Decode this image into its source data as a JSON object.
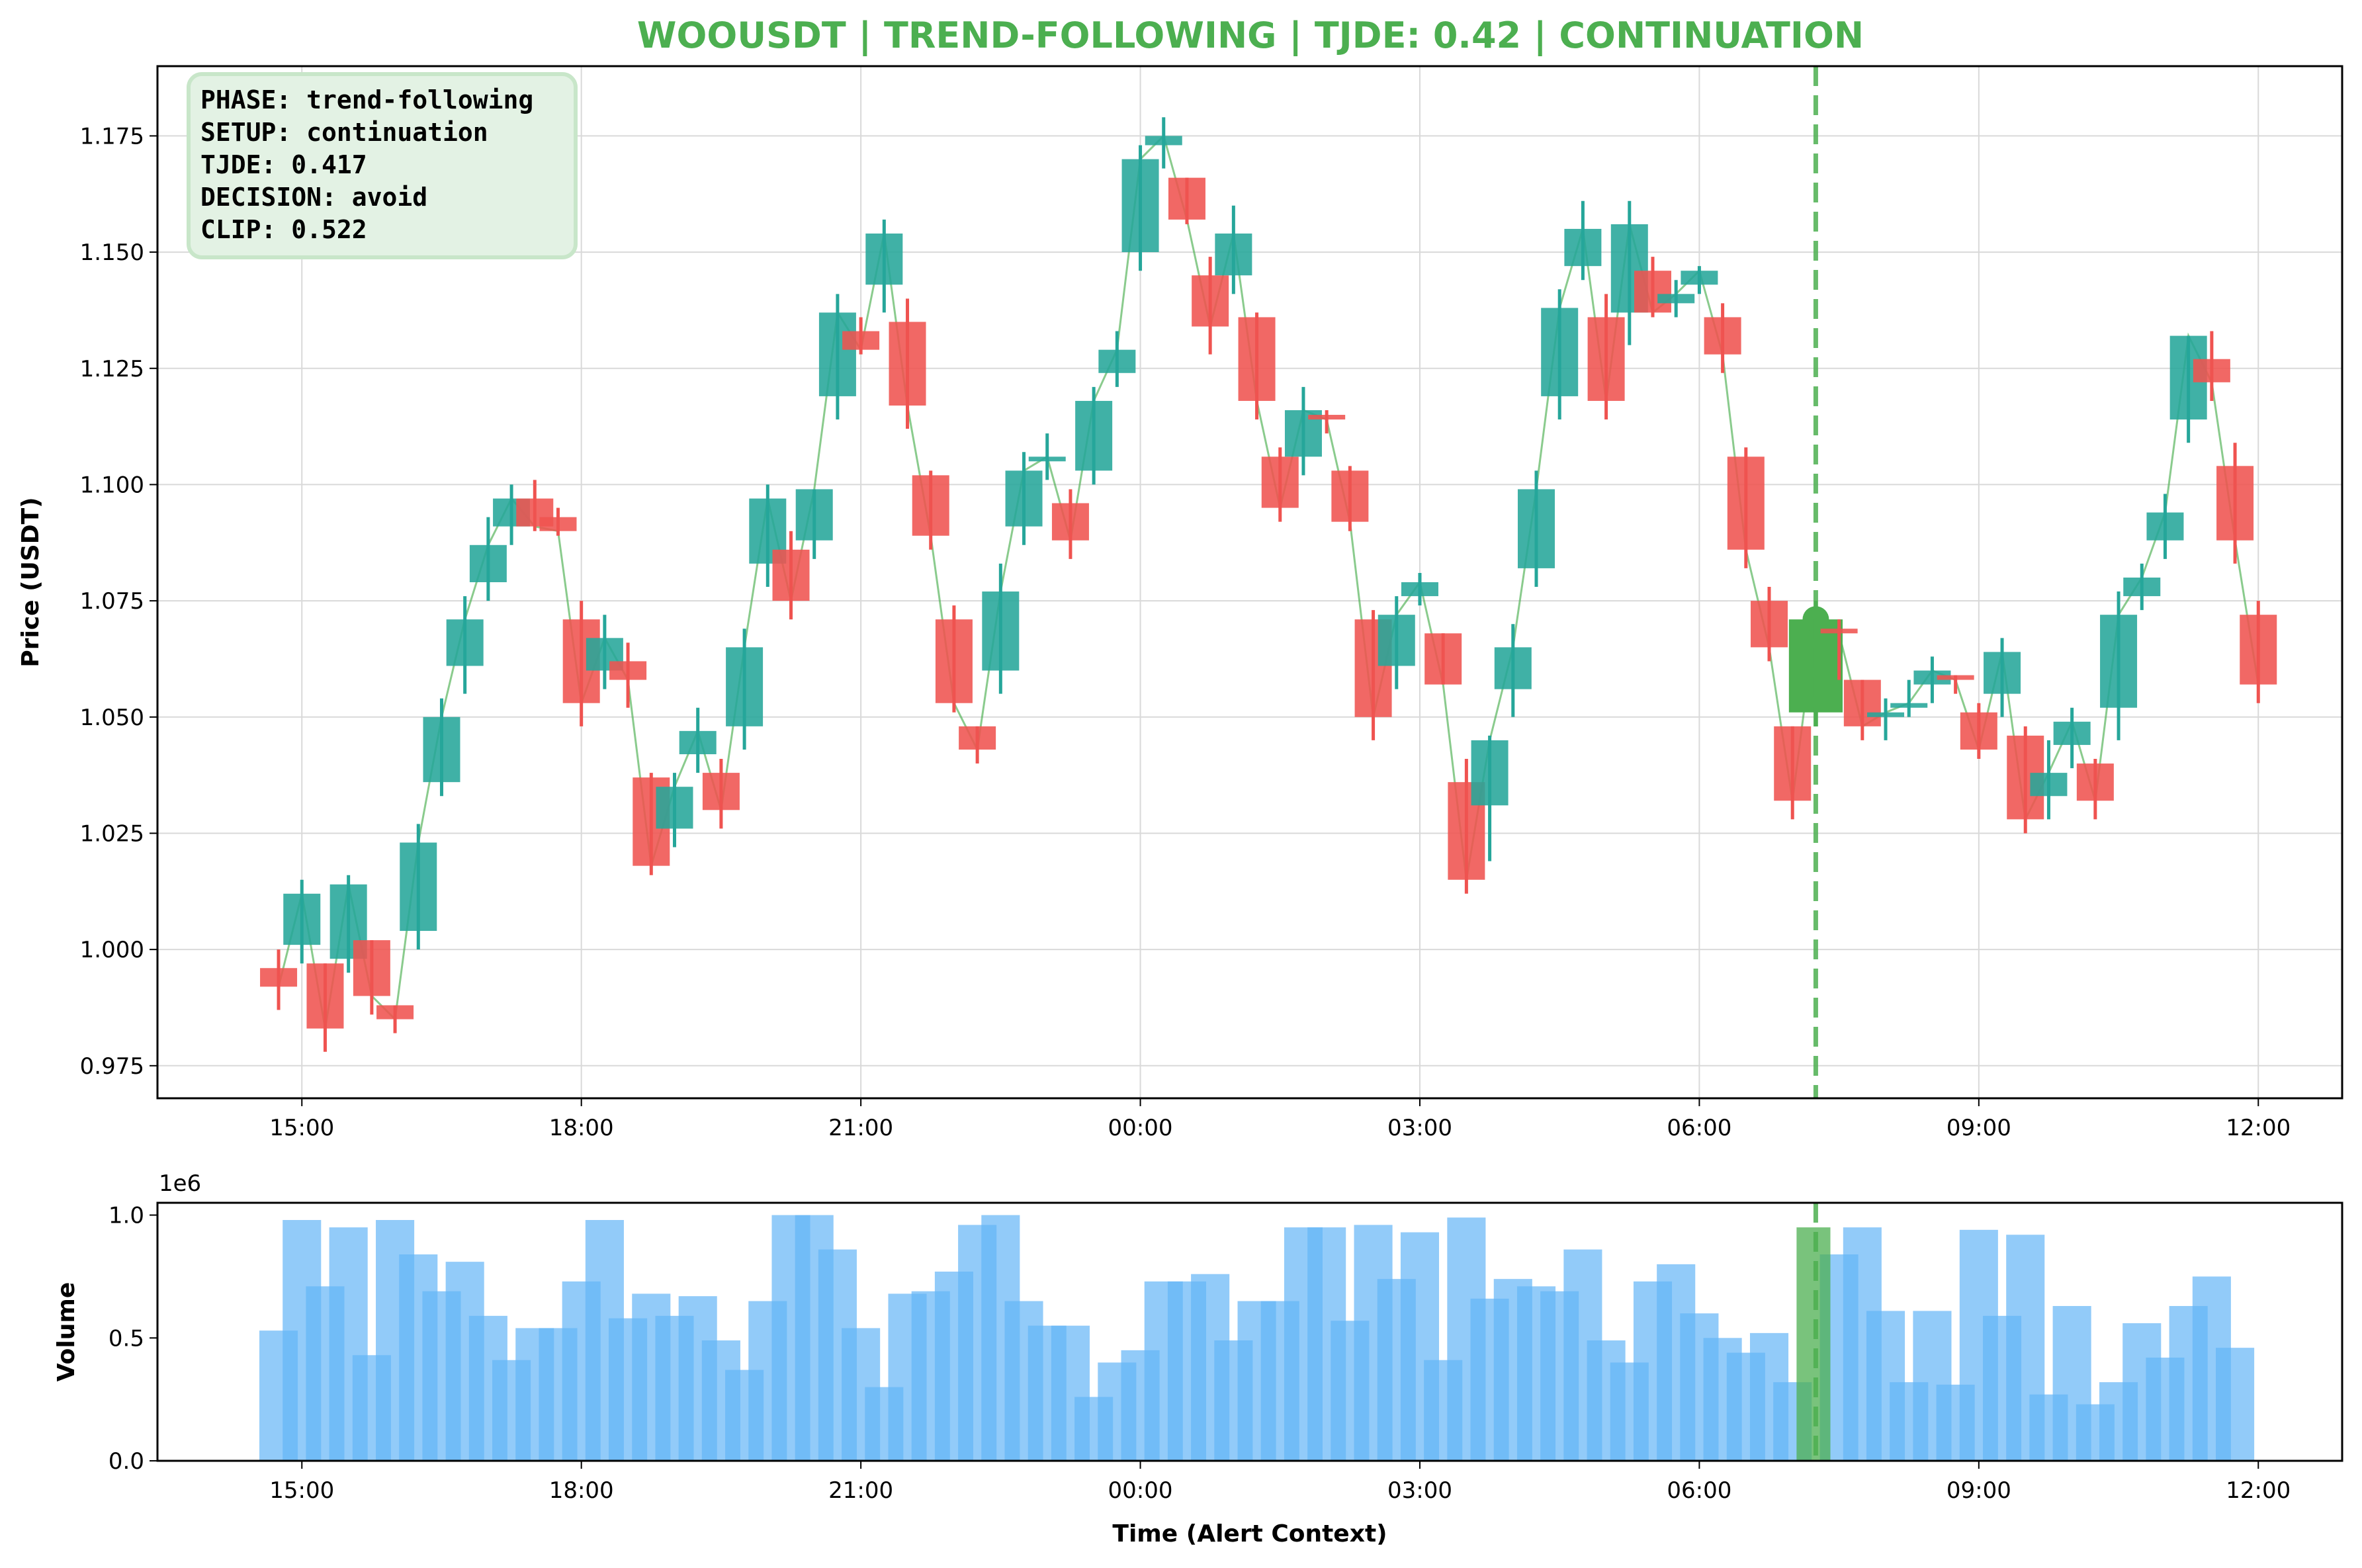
{
  "chart_data": [
    {
      "type": "candlestick",
      "title": "WOOUSDT | TREND-FOLLOWING | TJDE: 0.42 | CONTINUATION",
      "ylabel": "Price (USDT)",
      "xlabel": "",
      "x_range_hours": [
        -1.55,
        21.9
      ],
      "ylim": [
        0.968,
        1.19
      ],
      "y_ticks": [
        "0.975",
        "1.000",
        "1.025",
        "1.050",
        "1.075",
        "1.100",
        "1.125",
        "1.150",
        "1.175"
      ],
      "x_ticks": [
        "15:00",
        "18:00",
        "21:00",
        "00:00",
        "03:00",
        "06:00",
        "09:00",
        "12:00"
      ],
      "grid": true,
      "colors": {
        "up": "#26a69a",
        "down": "#ef5350",
        "alert": "#4caf50",
        "close_line": "#4caf50"
      },
      "alert_time": "07:15",
      "info_box": {
        "lines": [
          "PHASE: trend-following",
          "SETUP: continuation",
          "TJDE: 0.417",
          "DECISION: avoid",
          "CLIP: 0.522"
        ]
      },
      "candles": [
        {
          "t": "14:45",
          "o": 0.996,
          "h": 1.0,
          "l": 0.987,
          "c": 0.992
        },
        {
          "t": "15:00",
          "o": 1.001,
          "h": 1.015,
          "l": 0.997,
          "c": 1.012
        },
        {
          "t": "15:15",
          "o": 0.997,
          "h": 0.997,
          "l": 0.978,
          "c": 0.983
        },
        {
          "t": "15:30",
          "o": 0.998,
          "h": 1.016,
          "l": 0.995,
          "c": 1.014
        },
        {
          "t": "15:45",
          "o": 1.002,
          "h": 1.002,
          "l": 0.986,
          "c": 0.99
        },
        {
          "t": "16:00",
          "o": 0.988,
          "h": 0.988,
          "l": 0.982,
          "c": 0.985
        },
        {
          "t": "16:15",
          "o": 1.004,
          "h": 1.027,
          "l": 1.0,
          "c": 1.023
        },
        {
          "t": "16:30",
          "o": 1.036,
          "h": 1.054,
          "l": 1.033,
          "c": 1.05
        },
        {
          "t": "16:45",
          "o": 1.061,
          "h": 1.076,
          "l": 1.055,
          "c": 1.071
        },
        {
          "t": "17:00",
          "o": 1.079,
          "h": 1.093,
          "l": 1.075,
          "c": 1.087
        },
        {
          "t": "17:15",
          "o": 1.091,
          "h": 1.1,
          "l": 1.087,
          "c": 1.097
        },
        {
          "t": "17:30",
          "o": 1.097,
          "h": 1.101,
          "l": 1.09,
          "c": 1.091
        },
        {
          "t": "17:45",
          "o": 1.093,
          "h": 1.095,
          "l": 1.089,
          "c": 1.09
        },
        {
          "t": "18:00",
          "o": 1.071,
          "h": 1.075,
          "l": 1.048,
          "c": 1.053
        },
        {
          "t": "18:15",
          "o": 1.06,
          "h": 1.072,
          "l": 1.056,
          "c": 1.067
        },
        {
          "t": "18:30",
          "o": 1.062,
          "h": 1.066,
          "l": 1.052,
          "c": 1.058
        },
        {
          "t": "18:45",
          "o": 1.037,
          "h": 1.038,
          "l": 1.016,
          "c": 1.018
        },
        {
          "t": "19:00",
          "o": 1.026,
          "h": 1.038,
          "l": 1.022,
          "c": 1.035
        },
        {
          "t": "19:15",
          "o": 1.042,
          "h": 1.052,
          "l": 1.038,
          "c": 1.047
        },
        {
          "t": "19:30",
          "o": 1.038,
          "h": 1.041,
          "l": 1.026,
          "c": 1.03
        },
        {
          "t": "19:45",
          "o": 1.048,
          "h": 1.069,
          "l": 1.043,
          "c": 1.065
        },
        {
          "t": "20:00",
          "o": 1.083,
          "h": 1.1,
          "l": 1.078,
          "c": 1.097
        },
        {
          "t": "20:15",
          "o": 1.086,
          "h": 1.09,
          "l": 1.071,
          "c": 1.075
        },
        {
          "t": "20:30",
          "o": 1.088,
          "h": 1.099,
          "l": 1.084,
          "c": 1.099
        },
        {
          "t": "20:45",
          "o": 1.119,
          "h": 1.141,
          "l": 1.114,
          "c": 1.137
        },
        {
          "t": "21:00",
          "o": 1.133,
          "h": 1.136,
          "l": 1.128,
          "c": 1.129
        },
        {
          "t": "21:15",
          "o": 1.143,
          "h": 1.157,
          "l": 1.137,
          "c": 1.154
        },
        {
          "t": "21:30",
          "o": 1.135,
          "h": 1.14,
          "l": 1.112,
          "c": 1.117
        },
        {
          "t": "21:45",
          "o": 1.102,
          "h": 1.103,
          "l": 1.086,
          "c": 1.089
        },
        {
          "t": "22:00",
          "o": 1.071,
          "h": 1.074,
          "l": 1.051,
          "c": 1.053
        },
        {
          "t": "22:15",
          "o": 1.048,
          "h": 1.048,
          "l": 1.04,
          "c": 1.043
        },
        {
          "t": "22:30",
          "o": 1.06,
          "h": 1.083,
          "l": 1.055,
          "c": 1.077
        },
        {
          "t": "22:45",
          "o": 1.091,
          "h": 1.107,
          "l": 1.087,
          "c": 1.103
        },
        {
          "t": "23:00",
          "o": 1.105,
          "h": 1.111,
          "l": 1.101,
          "c": 1.106
        },
        {
          "t": "23:15",
          "o": 1.096,
          "h": 1.099,
          "l": 1.084,
          "c": 1.088
        },
        {
          "t": "23:30",
          "o": 1.103,
          "h": 1.121,
          "l": 1.1,
          "c": 1.118
        },
        {
          "t": "23:45",
          "o": 1.124,
          "h": 1.133,
          "l": 1.121,
          "c": 1.129
        },
        {
          "t": "00:00",
          "o": 1.15,
          "h": 1.173,
          "l": 1.146,
          "c": 1.17
        },
        {
          "t": "00:15",
          "o": 1.173,
          "h": 1.179,
          "l": 1.168,
          "c": 1.175
        },
        {
          "t": "00:30",
          "o": 1.166,
          "h": 1.166,
          "l": 1.156,
          "c": 1.157
        },
        {
          "t": "00:45",
          "o": 1.145,
          "h": 1.149,
          "l": 1.128,
          "c": 1.134
        },
        {
          "t": "01:00",
          "o": 1.145,
          "h": 1.16,
          "l": 1.141,
          "c": 1.154
        },
        {
          "t": "01:15",
          "o": 1.136,
          "h": 1.137,
          "l": 1.114,
          "c": 1.118
        },
        {
          "t": "01:30",
          "o": 1.106,
          "h": 1.108,
          "l": 1.092,
          "c": 1.095
        },
        {
          "t": "01:45",
          "o": 1.106,
          "h": 1.121,
          "l": 1.102,
          "c": 1.116
        },
        {
          "t": "02:00",
          "o": 1.115,
          "h": 1.116,
          "l": 1.111,
          "c": 1.114
        },
        {
          "t": "02:15",
          "o": 1.103,
          "h": 1.104,
          "l": 1.09,
          "c": 1.092
        },
        {
          "t": "02:30",
          "o": 1.071,
          "h": 1.073,
          "l": 1.045,
          "c": 1.05
        },
        {
          "t": "02:45",
          "o": 1.061,
          "h": 1.076,
          "l": 1.056,
          "c": 1.072
        },
        {
          "t": "03:00",
          "o": 1.076,
          "h": 1.081,
          "l": 1.074,
          "c": 1.079
        },
        {
          "t": "03:15",
          "o": 1.068,
          "h": 1.068,
          "l": 1.057,
          "c": 1.057
        },
        {
          "t": "03:30",
          "o": 1.036,
          "h": 1.041,
          "l": 1.012,
          "c": 1.015
        },
        {
          "t": "03:45",
          "o": 1.031,
          "h": 1.046,
          "l": 1.019,
          "c": 1.045
        },
        {
          "t": "04:00",
          "o": 1.056,
          "h": 1.07,
          "l": 1.05,
          "c": 1.065
        },
        {
          "t": "04:15",
          "o": 1.082,
          "h": 1.103,
          "l": 1.078,
          "c": 1.099
        },
        {
          "t": "04:30",
          "o": 1.119,
          "h": 1.142,
          "l": 1.114,
          "c": 1.138
        },
        {
          "t": "04:45",
          "o": 1.147,
          "h": 1.161,
          "l": 1.144,
          "c": 1.155
        },
        {
          "t": "05:00",
          "o": 1.136,
          "h": 1.141,
          "l": 1.114,
          "c": 1.118
        },
        {
          "t": "05:15",
          "o": 1.137,
          "h": 1.161,
          "l": 1.13,
          "c": 1.156
        },
        {
          "t": "05:30",
          "o": 1.146,
          "h": 1.149,
          "l": 1.136,
          "c": 1.137
        },
        {
          "t": "05:45",
          "o": 1.139,
          "h": 1.144,
          "l": 1.136,
          "c": 1.141
        },
        {
          "t": "06:00",
          "o": 1.143,
          "h": 1.147,
          "l": 1.141,
          "c": 1.146
        },
        {
          "t": "06:15",
          "o": 1.136,
          "h": 1.139,
          "l": 1.124,
          "c": 1.128
        },
        {
          "t": "06:30",
          "o": 1.106,
          "h": 1.108,
          "l": 1.082,
          "c": 1.086
        },
        {
          "t": "06:45",
          "o": 1.075,
          "h": 1.078,
          "l": 1.062,
          "c": 1.065
        },
        {
          "t": "07:00",
          "o": 1.048,
          "h": 1.048,
          "l": 1.028,
          "c": 1.032
        },
        {
          "t": "07:15",
          "o": 1.051,
          "h": 1.075,
          "l": 1.048,
          "c": 1.071,
          "alert": true
        },
        {
          "t": "07:30",
          "o": 1.069,
          "h": 1.071,
          "l": 1.058,
          "c": 1.068
        },
        {
          "t": "07:45",
          "o": 1.058,
          "h": 1.058,
          "l": 1.045,
          "c": 1.048
        },
        {
          "t": "08:00",
          "o": 1.05,
          "h": 1.054,
          "l": 1.045,
          "c": 1.051
        },
        {
          "t": "08:15",
          "o": 1.052,
          "h": 1.058,
          "l": 1.05,
          "c": 1.053
        },
        {
          "t": "08:30",
          "o": 1.057,
          "h": 1.063,
          "l": 1.053,
          "c": 1.06
        },
        {
          "t": "08:45",
          "o": 1.059,
          "h": 1.059,
          "l": 1.055,
          "c": 1.058
        },
        {
          "t": "09:00",
          "o": 1.051,
          "h": 1.053,
          "l": 1.041,
          "c": 1.043
        },
        {
          "t": "09:15",
          "o": 1.055,
          "h": 1.067,
          "l": 1.05,
          "c": 1.064
        },
        {
          "t": "09:30",
          "o": 1.046,
          "h": 1.048,
          "l": 1.025,
          "c": 1.028
        },
        {
          "t": "09:45",
          "o": 1.033,
          "h": 1.045,
          "l": 1.028,
          "c": 1.038
        },
        {
          "t": "10:00",
          "o": 1.044,
          "h": 1.052,
          "l": 1.039,
          "c": 1.049
        },
        {
          "t": "10:15",
          "o": 1.04,
          "h": 1.041,
          "l": 1.028,
          "c": 1.032
        },
        {
          "t": "10:30",
          "o": 1.052,
          "h": 1.077,
          "l": 1.045,
          "c": 1.072
        },
        {
          "t": "10:45",
          "o": 1.076,
          "h": 1.083,
          "l": 1.073,
          "c": 1.08
        },
        {
          "t": "11:00",
          "o": 1.088,
          "h": 1.098,
          "l": 1.084,
          "c": 1.094
        },
        {
          "t": "11:15",
          "o": 1.114,
          "h": 1.132,
          "l": 1.109,
          "c": 1.132
        },
        {
          "t": "11:30",
          "o": 1.127,
          "h": 1.133,
          "l": 1.118,
          "c": 1.122
        },
        {
          "t": "11:45",
          "o": 1.104,
          "h": 1.109,
          "l": 1.083,
          "c": 1.088
        },
        {
          "t": "12:00",
          "o": 1.072,
          "h": 1.075,
          "l": 1.053,
          "c": 1.057
        }
      ]
    },
    {
      "type": "bar",
      "title": "",
      "ylabel": "Volume",
      "xlabel": "Time (Alert Context)",
      "scale_label": "1e6",
      "ylim": [
        0,
        1050000
      ],
      "y_ticks": [
        "0.0",
        "0.5",
        "1.0"
      ],
      "x_ticks": [
        "15:00",
        "18:00",
        "21:00",
        "00:00",
        "03:00",
        "06:00",
        "09:00",
        "12:00"
      ],
      "grid": false,
      "colors": {
        "bar": "#64b5f6",
        "alert": "#4caf50"
      },
      "alert_time": "07:15",
      "volumes": [
        {
          "t": "14:45",
          "v": 530000
        },
        {
          "t": "15:00",
          "v": 980000
        },
        {
          "t": "15:15",
          "v": 710000
        },
        {
          "t": "15:30",
          "v": 950000
        },
        {
          "t": "15:45",
          "v": 430000
        },
        {
          "t": "16:00",
          "v": 980000
        },
        {
          "t": "16:15",
          "v": 840000
        },
        {
          "t": "16:30",
          "v": 690000
        },
        {
          "t": "16:45",
          "v": 810000
        },
        {
          "t": "17:00",
          "v": 590000
        },
        {
          "t": "17:15",
          "v": 410000
        },
        {
          "t": "17:30",
          "v": 540000
        },
        {
          "t": "17:45",
          "v": 540000
        },
        {
          "t": "18:00",
          "v": 730000
        },
        {
          "t": "18:15",
          "v": 980000
        },
        {
          "t": "18:30",
          "v": 580000
        },
        {
          "t": "18:45",
          "v": 680000
        },
        {
          "t": "19:00",
          "v": 590000
        },
        {
          "t": "19:15",
          "v": 670000
        },
        {
          "t": "19:30",
          "v": 490000
        },
        {
          "t": "19:45",
          "v": 370000
        },
        {
          "t": "20:00",
          "v": 650000
        },
        {
          "t": "20:15",
          "v": 1000000
        },
        {
          "t": "20:30",
          "v": 1000000
        },
        {
          "t": "20:45",
          "v": 860000
        },
        {
          "t": "21:00",
          "v": 540000
        },
        {
          "t": "21:15",
          "v": 300000
        },
        {
          "t": "21:30",
          "v": 680000
        },
        {
          "t": "21:45",
          "v": 690000
        },
        {
          "t": "22:00",
          "v": 770000
        },
        {
          "t": "22:15",
          "v": 960000
        },
        {
          "t": "22:30",
          "v": 1000000
        },
        {
          "t": "22:45",
          "v": 650000
        },
        {
          "t": "23:00",
          "v": 550000
        },
        {
          "t": "23:15",
          "v": 550000
        },
        {
          "t": "23:30",
          "v": 260000
        },
        {
          "t": "23:45",
          "v": 400000
        },
        {
          "t": "00:00",
          "v": 450000
        },
        {
          "t": "00:15",
          "v": 730000
        },
        {
          "t": "00:30",
          "v": 730000
        },
        {
          "t": "00:45",
          "v": 760000
        },
        {
          "t": "01:00",
          "v": 490000
        },
        {
          "t": "01:15",
          "v": 650000
        },
        {
          "t": "01:30",
          "v": 650000
        },
        {
          "t": "01:45",
          "v": 950000
        },
        {
          "t": "02:00",
          "v": 950000
        },
        {
          "t": "02:15",
          "v": 570000
        },
        {
          "t": "02:30",
          "v": 960000
        },
        {
          "t": "02:45",
          "v": 740000
        },
        {
          "t": "03:00",
          "v": 930000
        },
        {
          "t": "03:15",
          "v": 410000
        },
        {
          "t": "03:30",
          "v": 990000
        },
        {
          "t": "03:45",
          "v": 660000
        },
        {
          "t": "04:00",
          "v": 740000
        },
        {
          "t": "04:15",
          "v": 710000
        },
        {
          "t": "04:30",
          "v": 690000
        },
        {
          "t": "04:45",
          "v": 860000
        },
        {
          "t": "05:00",
          "v": 490000
        },
        {
          "t": "05:15",
          "v": 400000
        },
        {
          "t": "05:30",
          "v": 730000
        },
        {
          "t": "05:45",
          "v": 800000
        },
        {
          "t": "06:00",
          "v": 600000
        },
        {
          "t": "06:15",
          "v": 500000
        },
        {
          "t": "06:30",
          "v": 440000
        },
        {
          "t": "06:45",
          "v": 520000
        },
        {
          "t": "07:00",
          "v": 320000
        },
        {
          "t": "07:15",
          "v": 950000,
          "alert": true
        },
        {
          "t": "07:30",
          "v": 840000
        },
        {
          "t": "07:45",
          "v": 950000
        },
        {
          "t": "08:00",
          "v": 610000
        },
        {
          "t": "08:15",
          "v": 320000
        },
        {
          "t": "08:30",
          "v": 610000
        },
        {
          "t": "08:45",
          "v": 310000
        },
        {
          "t": "09:00",
          "v": 940000
        },
        {
          "t": "09:15",
          "v": 590000
        },
        {
          "t": "09:30",
          "v": 920000
        },
        {
          "t": "09:45",
          "v": 270000
        },
        {
          "t": "10:00",
          "v": 630000
        },
        {
          "t": "10:15",
          "v": 230000
        },
        {
          "t": "10:30",
          "v": 320000
        },
        {
          "t": "10:45",
          "v": 560000
        },
        {
          "t": "11:00",
          "v": 420000
        },
        {
          "t": "11:15",
          "v": 630000
        },
        {
          "t": "11:30",
          "v": 750000
        },
        {
          "t": "11:45",
          "v": 460000
        }
      ]
    }
  ]
}
